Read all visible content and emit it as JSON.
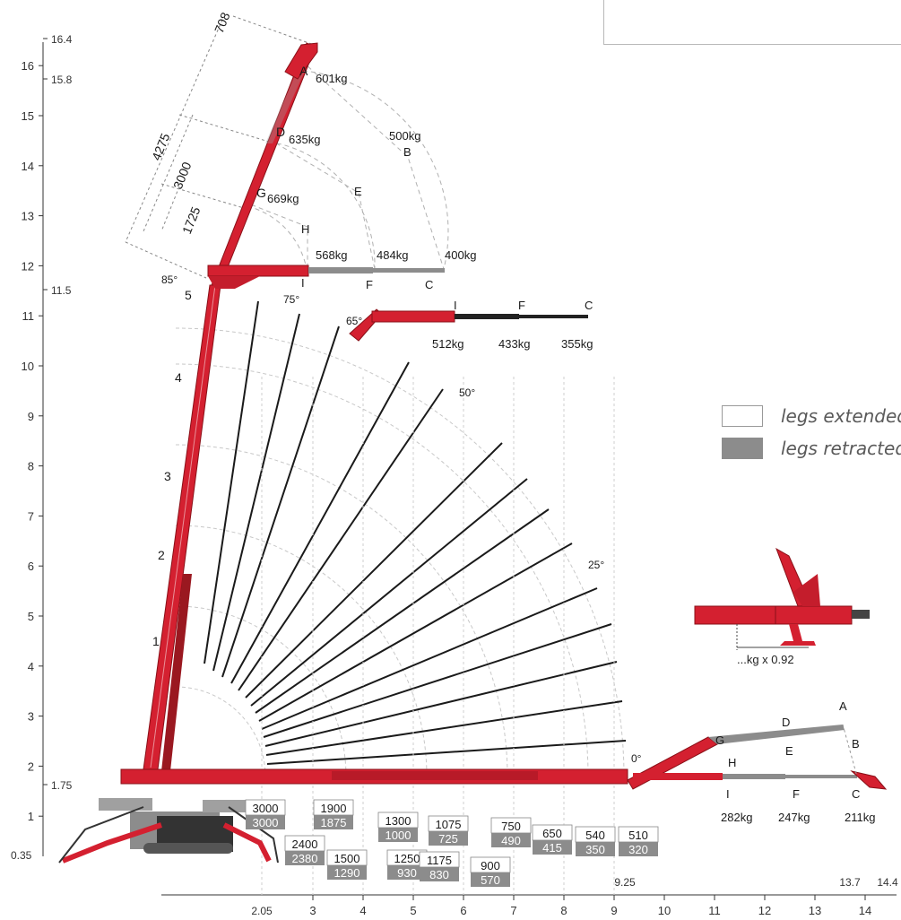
{
  "axes": {
    "y_ticks": [
      1,
      2,
      3,
      4,
      5,
      6,
      7,
      8,
      9,
      10,
      11,
      12,
      13,
      14,
      15,
      16
    ],
    "y_special": [
      "16.4",
      "15.8",
      "11.5",
      "1.75",
      "0.35"
    ],
    "x_ticks": [
      3,
      4,
      5,
      6,
      7,
      8,
      9,
      10,
      11,
      12,
      13,
      14
    ],
    "x_special": [
      "2.05",
      "9.25",
      "13.7",
      "14.4"
    ]
  },
  "angles": [
    "85°",
    "75°",
    "65°",
    "50°",
    "25°",
    "0°"
  ],
  "dimensions": [
    "708",
    "4275",
    "3000",
    "1725"
  ],
  "top_boom": {
    "loads": {
      "A": "601kg",
      "D": "635kg",
      "G": "669kg",
      "B": "500kg",
      "I": "568kg",
      "F": "484kg",
      "C": "400kg"
    },
    "letters": [
      "A",
      "D",
      "G",
      "B",
      "E",
      "H",
      "I",
      "F",
      "C"
    ],
    "section_numbers": [
      "5",
      "4",
      "3",
      "2",
      "1"
    ]
  },
  "boom_65": {
    "letters": [
      "I",
      "F",
      "C"
    ],
    "loads": [
      "512kg",
      "433kg",
      "355kg"
    ]
  },
  "ground_boom": {
    "letters": [
      "A",
      "D",
      "G",
      "B",
      "E",
      "H",
      "I",
      "F",
      "C"
    ],
    "loads": [
      "282kg",
      "247kg",
      "211kg"
    ]
  },
  "capacity_boxes": [
    {
      "ext": "3000",
      "ret": "3000"
    },
    {
      "ext": "2400",
      "ret": "2380"
    },
    {
      "ext": "1900",
      "ret": "1875"
    },
    {
      "ext": "1500",
      "ret": "1290"
    },
    {
      "ext": "1300",
      "ret": "1000"
    },
    {
      "ext": "1250",
      "ret": "930"
    },
    {
      "ext": "1075",
      "ret": "725"
    },
    {
      "ext": "1175",
      "ret": "830"
    },
    {
      "ext": "900",
      "ret": "570"
    },
    {
      "ext": "750",
      "ret": "490"
    },
    {
      "ext": "650",
      "ret": "415"
    },
    {
      "ext": "540",
      "ret": "350"
    },
    {
      "ext": "510",
      "ret": "320"
    }
  ],
  "inset_note": "...kg x 0.92",
  "legend": [
    {
      "label": "legs extended",
      "swatch": "#ffffff"
    },
    {
      "label": "legs retracted",
      "swatch": "#8c8c8c"
    }
  ],
  "colors": {
    "boom": "#d42030",
    "boom_dark": "#8a1018",
    "gray_load": "#8c8c8c",
    "lines": "#1a1a1a"
  }
}
